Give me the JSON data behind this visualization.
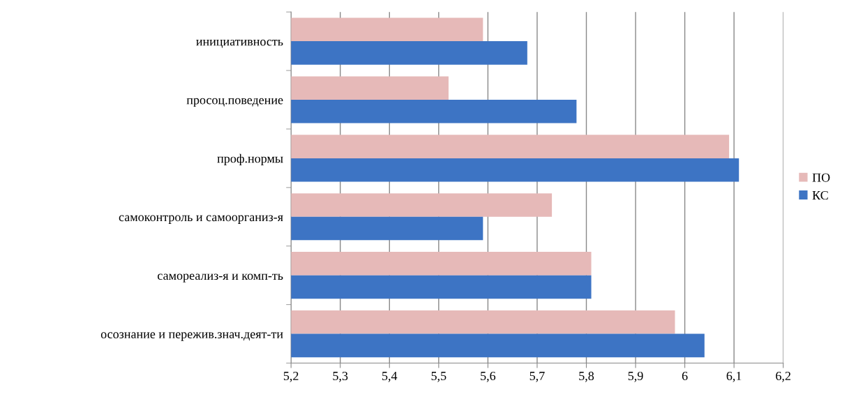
{
  "chart_data": {
    "type": "bar",
    "orientation": "horizontal",
    "categories": [
      "инициативность",
      "просоц.поведение",
      "проф.нормы",
      "самоконтроль и самоорганиз-я",
      "самореализ-я и комп-ть",
      "осознание и пережив.знач.деят-ти"
    ],
    "series": [
      {
        "name": "ПО",
        "color": "#e6b9b8",
        "values": [
          5.59,
          5.52,
          6.09,
          5.73,
          5.81,
          5.98
        ]
      },
      {
        "name": "КС",
        "color": "#3d74c4",
        "values": [
          5.68,
          5.78,
          6.11,
          5.59,
          5.81,
          6.04
        ]
      }
    ],
    "xlim": [
      5.2,
      6.2
    ],
    "xticks": [
      {
        "value": 5.2,
        "label": "5,2"
      },
      {
        "value": 5.3,
        "label": "5,3"
      },
      {
        "value": 5.4,
        "label": "5,4"
      },
      {
        "value": 5.5,
        "label": "5,5"
      },
      {
        "value": 5.6,
        "label": "5,6"
      },
      {
        "value": 5.7,
        "label": "5,7"
      },
      {
        "value": 5.8,
        "label": "5,8"
      },
      {
        "value": 5.9,
        "label": "5,9"
      },
      {
        "value": 6,
        "label": "6"
      },
      {
        "value": 6.1,
        "label": "6,1"
      },
      {
        "value": 6.2,
        "label": "6,2"
      }
    ],
    "grid": "x",
    "legend": "right"
  }
}
